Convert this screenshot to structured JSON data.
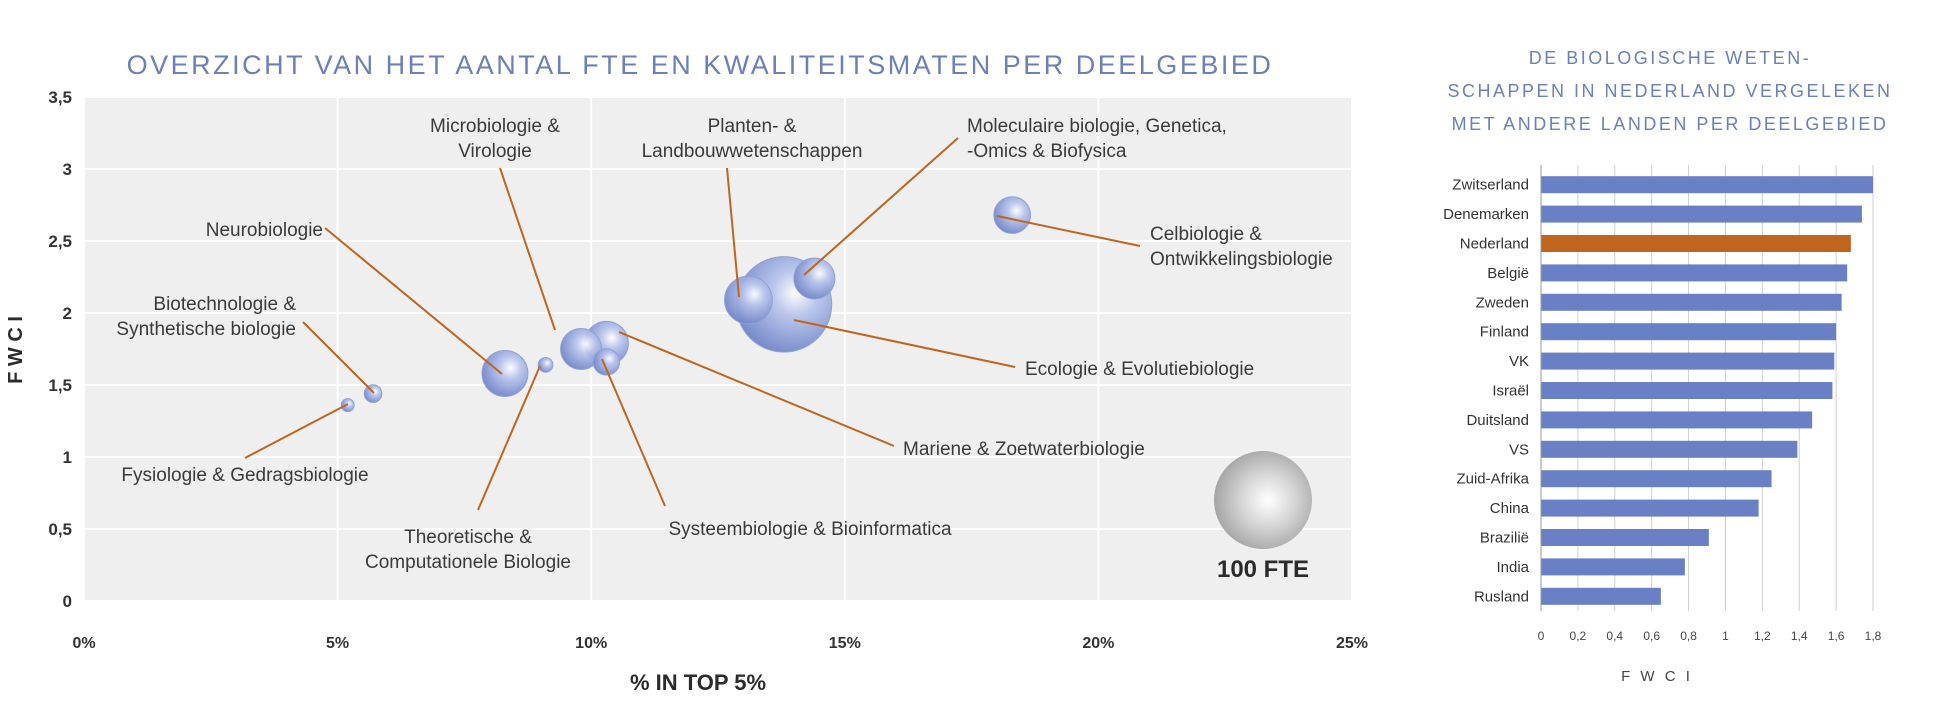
{
  "chart_data": [
    {
      "type": "scatter",
      "title": "OVERZICHT VAN HET AANTAL FTE EN KWALITEITSMATEN PER DEELGEBIED",
      "xlabel": "% IN TOP 5%",
      "ylabel": "F W C I",
      "xlim": [
        0,
        25
      ],
      "ylim": [
        0,
        3.5
      ],
      "x_ticks": [
        {
          "v": 0,
          "label": "0%"
        },
        {
          "v": 5,
          "label": "5%"
        },
        {
          "v": 10,
          "label": "10%"
        },
        {
          "v": 15,
          "label": "15%"
        },
        {
          "v": 20,
          "label": "20%"
        },
        {
          "v": 25,
          "label": "25%"
        }
      ],
      "y_ticks": [
        {
          "v": 0,
          "label": "0"
        },
        {
          "v": 0.5,
          "label": "0,5"
        },
        {
          "v": 1,
          "label": "1"
        },
        {
          "v": 1.5,
          "label": "1,5"
        },
        {
          "v": 2,
          "label": "2"
        },
        {
          "v": 2.5,
          "label": "2,5"
        },
        {
          "v": 3,
          "label": "3"
        },
        {
          "v": 3.5,
          "label": "3,5"
        }
      ],
      "grid": true,
      "bubble_size_unit": "FTE",
      "size_legend": {
        "label": "100 FTE",
        "fte": 100
      },
      "points": [
        {
          "name": "Fysiologie & Gedragsbiologie",
          "x": 5.2,
          "y": 1.36,
          "fte": 7
        },
        {
          "name": "Biotechnologie & Synthetische biologie",
          "x": 5.7,
          "y": 1.44,
          "fte": 13
        },
        {
          "name": "Neurobiologie",
          "x": 8.3,
          "y": 1.58,
          "fte": 88
        },
        {
          "name": "Theoretische & Computationele Biologie",
          "x": 9.1,
          "y": 1.64,
          "fte": 9
        },
        {
          "name": "Microbiologie & Virologie",
          "x": 9.8,
          "y": 1.75,
          "fte": 70
        },
        {
          "name": "Mariene & Zoetwaterbiologie",
          "x": 10.3,
          "y": 1.79,
          "fte": 80
        },
        {
          "name": "Systeembiologie & Bioinformatica",
          "x": 10.3,
          "y": 1.66,
          "fte": 29
        },
        {
          "name": "Ecologie & Evolutiebiologie",
          "x": 13.8,
          "y": 2.06,
          "fte": 380
        },
        {
          "name": "Planten- & Landbouwwetenschappen",
          "x": 13.1,
          "y": 2.09,
          "fte": 95
        },
        {
          "name": "Moleculaire biologie, Genetica, -Omics & Biofysica",
          "x": 14.4,
          "y": 2.24,
          "fte": 70
        },
        {
          "name": "Celbiologie & Ontwikkelingsbiologie",
          "x": 18.3,
          "y": 2.68,
          "fte": 56
        }
      ],
      "labels": [
        {
          "lines": [
            "Neurobiologie"
          ],
          "anchor": "end"
        },
        {
          "lines": [
            "Biotechnologie &",
            "Synthetische biologie"
          ],
          "anchor": "end"
        },
        {
          "lines": [
            "Fysiologie & Gedragsbiologie"
          ],
          "anchor": "middle"
        },
        {
          "lines": [
            "Microbiologie &",
            "Virologie"
          ],
          "anchor": "middle"
        },
        {
          "lines": [
            "Planten- &",
            "Landbouwwetenschappen"
          ],
          "anchor": "middle"
        },
        {
          "lines": [
            "Moleculaire biologie, Genetica,",
            "-Omics & Biofysica"
          ],
          "anchor": "start"
        },
        {
          "lines": [
            "Celbiologie &",
            "Ontwikkelingsbiologie"
          ],
          "anchor": "start"
        },
        {
          "lines": [
            "Ecologie & Evolutiebiologie"
          ],
          "anchor": "start"
        },
        {
          "lines": [
            "Mariene & Zoetwaterbiologie"
          ],
          "anchor": "start"
        },
        {
          "lines": [
            "Systeembiologie & Bioinformatica"
          ],
          "anchor": "middle"
        },
        {
          "lines": [
            "Theoretische &",
            "Computationele Biologie"
          ],
          "anchor": "middle"
        }
      ],
      "colors": {
        "bubble": "#7a8fd0",
        "leader": "#c0651e",
        "plot_bg": "#efefef",
        "text": "#3a3a3a"
      }
    },
    {
      "type": "bar",
      "orientation": "horizontal",
      "title_lines": [
        "DE BIOLOGISCHE WETEN-",
        "SCHAPPEN IN NEDERLAND VERGELEKEN",
        "MET ANDERE LANDEN PER DEELGEBIED"
      ],
      "xlabel": "F W C I",
      "xlim": [
        0,
        1.8
      ],
      "x_ticks": [
        {
          "v": 0,
          "label": "0"
        },
        {
          "v": 0.2,
          "label": "0,2"
        },
        {
          "v": 0.4,
          "label": "0,4"
        },
        {
          "v": 0.6,
          "label": "0,6"
        },
        {
          "v": 0.8,
          "label": "0,8"
        },
        {
          "v": 1,
          "label": "1"
        },
        {
          "v": 1.2,
          "label": "1,2"
        },
        {
          "v": 1.4,
          "label": "1,4"
        },
        {
          "v": 1.6,
          "label": "1,6"
        },
        {
          "v": 1.8,
          "label": "1,8"
        }
      ],
      "categories": [
        "Zwitserland",
        "Denemarken",
        "Nederland",
        "België",
        "Zweden",
        "Finland",
        "VK",
        "Israël",
        "Duitsland",
        "VS",
        "Zuid-Afrika",
        "China",
        "Brazilië",
        "India",
        "Rusland"
      ],
      "values": [
        1.8,
        1.74,
        1.68,
        1.66,
        1.63,
        1.6,
        1.59,
        1.58,
        1.47,
        1.39,
        1.25,
        1.18,
        0.91,
        0.78,
        0.65
      ],
      "highlight": "Nederland",
      "colors": {
        "bar": "#6a80c4",
        "highlight": "#c0651e",
        "grid": "#cfcfcf"
      }
    }
  ]
}
